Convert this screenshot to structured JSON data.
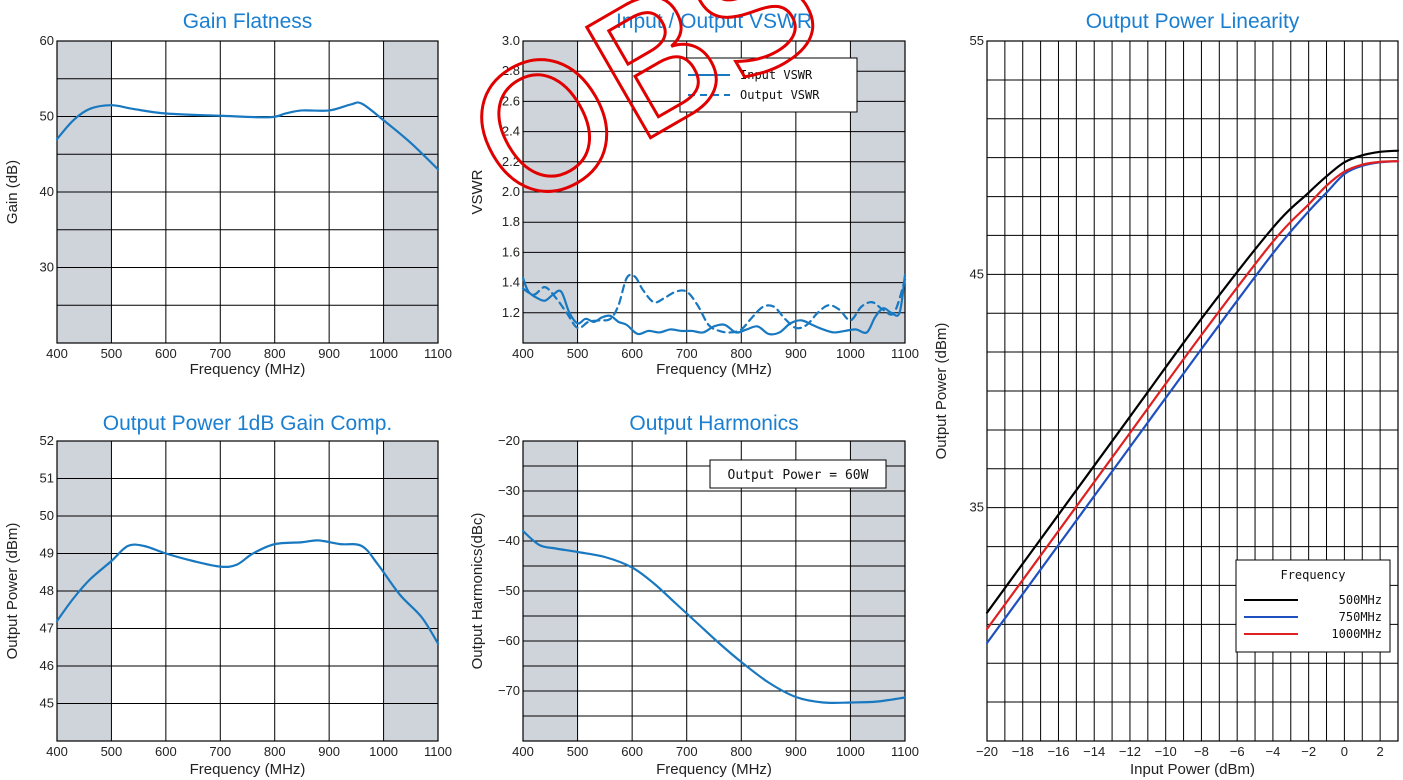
{
  "watermark": {
    "text": "OBS",
    "color": "#e00000"
  },
  "colors": {
    "curve": "#1878c0",
    "shade": "#cfd3da",
    "grid": "#000000",
    "title": "#1a7fd0"
  },
  "chart_data": [
    {
      "id": "gain",
      "type": "line",
      "title": "Gain Flatness",
      "xlabel": "Frequency (MHz)",
      "ylabel": "Gain (dB)",
      "xlim": [
        400,
        1100
      ],
      "ylim": [
        20,
        60
      ],
      "xticks": [
        400,
        500,
        600,
        700,
        800,
        900,
        1000,
        1100
      ],
      "yticks": [
        30,
        40,
        50,
        60
      ],
      "grid_x": [
        400,
        500,
        600,
        700,
        800,
        900,
        1000,
        1100
      ],
      "grid_y": [
        25,
        30,
        35,
        40,
        45,
        50,
        55,
        60
      ],
      "shaded_x": [
        [
          400,
          500
        ],
        [
          1000,
          1100
        ]
      ],
      "grid": true,
      "series": [
        {
          "style": "solid",
          "color": "#1878c0",
          "x": [
            400,
            430,
            460,
            500,
            540,
            600,
            700,
            790,
            820,
            850,
            900,
            940,
            960,
            1000,
            1050,
            1100
          ],
          "y": [
            47,
            49.5,
            51,
            51.5,
            51,
            50.4,
            50.1,
            49.9,
            50.4,
            50.8,
            50.8,
            51.6,
            51.7,
            49.5,
            46.5,
            43
          ]
        }
      ]
    },
    {
      "id": "vswr",
      "type": "line",
      "title": "Input / Output VSWR",
      "xlabel": "Frequency (MHz)",
      "ylabel": "VSWR",
      "xlim": [
        400,
        1100
      ],
      "ylim": [
        1.0,
        3.0
      ],
      "xticks": [
        400,
        500,
        600,
        700,
        800,
        900,
        1000,
        1100
      ],
      "yticks": [
        "1.2",
        "1.4",
        "1.6",
        "1.8",
        "2.0",
        "2.2",
        "2.4",
        "2.6",
        "2.8",
        "3.0"
      ],
      "grid_x": [
        400,
        500,
        600,
        700,
        800,
        900,
        1000,
        1100
      ],
      "grid_y": [
        1.2,
        1.4,
        1.6,
        1.8,
        2.0,
        2.2,
        2.4,
        2.6,
        2.8,
        3.0
      ],
      "shaded_x": [
        [
          400,
          500
        ],
        [
          1000,
          1100
        ]
      ],
      "grid": true,
      "legend_position": "top-right",
      "series": [
        {
          "name": "Input VSWR",
          "style": "solid",
          "color": "#1878c0",
          "x": [
            400,
            410,
            425,
            440,
            455,
            470,
            485,
            500,
            515,
            530,
            545,
            560,
            575,
            590,
            610,
            630,
            650,
            670,
            690,
            710,
            730,
            750,
            770,
            790,
            810,
            830,
            850,
            870,
            890,
            910,
            930,
            950,
            970,
            990,
            1010,
            1030,
            1045,
            1060,
            1075,
            1090,
            1100
          ],
          "y": [
            1.43,
            1.34,
            1.3,
            1.28,
            1.32,
            1.34,
            1.2,
            1.13,
            1.16,
            1.14,
            1.17,
            1.18,
            1.14,
            1.12,
            1.06,
            1.08,
            1.07,
            1.09,
            1.08,
            1.08,
            1.07,
            1.11,
            1.12,
            1.07,
            1.09,
            1.11,
            1.06,
            1.07,
            1.13,
            1.15,
            1.12,
            1.09,
            1.07,
            1.08,
            1.09,
            1.07,
            1.17,
            1.23,
            1.2,
            1.2,
            1.45
          ]
        },
        {
          "name": "Output VSWR",
          "style": "dashed",
          "color": "#1878c0",
          "x": [
            400,
            420,
            440,
            460,
            480,
            500,
            520,
            540,
            560,
            575,
            590,
            605,
            620,
            640,
            660,
            680,
            700,
            720,
            740,
            760,
            780,
            800,
            820,
            840,
            860,
            880,
            900,
            920,
            940,
            960,
            980,
            1000,
            1020,
            1040,
            1060,
            1080,
            1100
          ],
          "y": [
            1.36,
            1.32,
            1.37,
            1.3,
            1.2,
            1.1,
            1.14,
            1.15,
            1.16,
            1.25,
            1.43,
            1.44,
            1.35,
            1.27,
            1.3,
            1.34,
            1.34,
            1.25,
            1.12,
            1.08,
            1.07,
            1.09,
            1.17,
            1.24,
            1.24,
            1.16,
            1.1,
            1.12,
            1.2,
            1.25,
            1.22,
            1.15,
            1.24,
            1.27,
            1.22,
            1.2,
            1.42
          ]
        }
      ]
    },
    {
      "id": "p1db",
      "type": "line",
      "title": "Output Power 1dB Gain Comp.",
      "xlabel": "Frequency (MHz)",
      "ylabel": "Output Power (dBm)",
      "xlim": [
        400,
        1100
      ],
      "ylim": [
        44,
        52
      ],
      "xticks": [
        400,
        500,
        600,
        700,
        800,
        900,
        1000,
        1100
      ],
      "yticks": [
        45,
        46,
        47,
        48,
        49,
        50,
        51,
        52
      ],
      "grid_x": [
        400,
        500,
        600,
        700,
        800,
        900,
        1000,
        1100
      ],
      "grid_y": [
        45,
        46,
        47,
        48,
        49,
        50,
        51,
        52
      ],
      "shaded_x": [
        [
          400,
          500
        ],
        [
          1000,
          1100
        ]
      ],
      "grid": true,
      "series": [
        {
          "style": "solid",
          "color": "#1878c0",
          "x": [
            400,
            430,
            460,
            500,
            530,
            560,
            600,
            650,
            700,
            730,
            760,
            800,
            850,
            880,
            920,
            960,
            990,
            1030,
            1070,
            1100
          ],
          "y": [
            47.2,
            47.8,
            48.3,
            48.8,
            49.2,
            49.2,
            49.0,
            48.8,
            48.65,
            48.7,
            49.0,
            49.25,
            49.3,
            49.35,
            49.25,
            49.2,
            48.7,
            47.9,
            47.3,
            46.6
          ]
        }
      ]
    },
    {
      "id": "harm",
      "type": "line",
      "title": "Output Harmonics",
      "xlabel": "Frequency (MHz)",
      "ylabel": "Output Harmonics(dBc)",
      "xlim": [
        400,
        1100
      ],
      "ylim": [
        -80,
        -20
      ],
      "xticks": [
        400,
        500,
        600,
        700,
        800,
        900,
        1000,
        1100
      ],
      "yticks": [
        -70,
        -60,
        -50,
        -40,
        -30,
        -20
      ],
      "grid_x": [
        400,
        500,
        600,
        700,
        800,
        900,
        1000,
        1100
      ],
      "grid_y": [
        -75,
        -70,
        -65,
        -60,
        -55,
        -50,
        -45,
        -40,
        -35,
        -30,
        -25,
        -20
      ],
      "shaded_x": [
        [
          400,
          500
        ],
        [
          1000,
          1100
        ]
      ],
      "grid": true,
      "annotation": "Output Power = 60W",
      "series": [
        {
          "style": "solid",
          "color": "#1878c0",
          "x": [
            400,
            430,
            460,
            500,
            550,
            600,
            640,
            680,
            720,
            760,
            800,
            850,
            900,
            950,
            1000,
            1050,
            1100
          ],
          "y": [
            -38,
            -40.8,
            -41.5,
            -42.2,
            -43.2,
            -45.3,
            -48.5,
            -52.5,
            -56.5,
            -60.5,
            -64.2,
            -68.3,
            -71.2,
            -72.3,
            -72.3,
            -72.1,
            -71.3
          ]
        }
      ]
    },
    {
      "id": "lin",
      "type": "line",
      "title": "Output Power Linearity",
      "xlabel": "Input Power (dBm)",
      "ylabel": "Output Power (dBm)",
      "xlim": [
        -20,
        3
      ],
      "ylim": [
        25,
        55
      ],
      "xticks": [
        -20,
        -18,
        -16,
        -14,
        -12,
        -10,
        -8,
        -6,
        -4,
        -2,
        0,
        2
      ],
      "yticks": [
        35,
        45,
        55
      ],
      "grid_x": [
        -20,
        -19,
        -18,
        -17,
        -16,
        -15,
        -14,
        -13,
        -12,
        -11,
        -10,
        -9,
        -8,
        -7,
        -6,
        -5,
        -4,
        -3,
        -2,
        -1,
        0,
        1,
        2,
        3
      ],
      "grid_y": [
        25,
        26.67,
        28.33,
        30,
        31.67,
        33.33,
        35,
        36.67,
        38.33,
        40,
        41.67,
        43.33,
        45,
        46.67,
        48.33,
        50,
        51.67,
        53.33,
        55
      ],
      "grid": true,
      "legend_position": "bottom-right",
      "legend_title": "Frequency",
      "series": [
        {
          "name": "500MHz",
          "style": "solid",
          "color": "#000000",
          "x": [
            -20,
            -16,
            -12,
            -8,
            -4,
            -2,
            -1,
            0,
            1,
            2,
            3
          ],
          "y": [
            30.5,
            34.7,
            38.9,
            43.1,
            47,
            48.5,
            49.2,
            49.8,
            50.1,
            50.25,
            50.3
          ]
        },
        {
          "name": "750MHz",
          "style": "solid",
          "color": "#2050c0",
          "x": [
            -20,
            -16,
            -12,
            -8,
            -4,
            -2,
            -1,
            0,
            1,
            2,
            3
          ],
          "y": [
            29.2,
            33.4,
            37.6,
            41.8,
            45.9,
            47.7,
            48.5,
            49.3,
            49.65,
            49.8,
            49.85
          ]
        },
        {
          "name": "1000MHz",
          "style": "solid",
          "color": "#e02020",
          "x": [
            -20,
            -16,
            -12,
            -8,
            -4,
            -2,
            -1,
            0,
            1,
            2,
            3
          ],
          "y": [
            29.8,
            34,
            38.2,
            42.4,
            46.4,
            48,
            48.8,
            49.4,
            49.7,
            49.82,
            49.85
          ]
        }
      ]
    }
  ]
}
